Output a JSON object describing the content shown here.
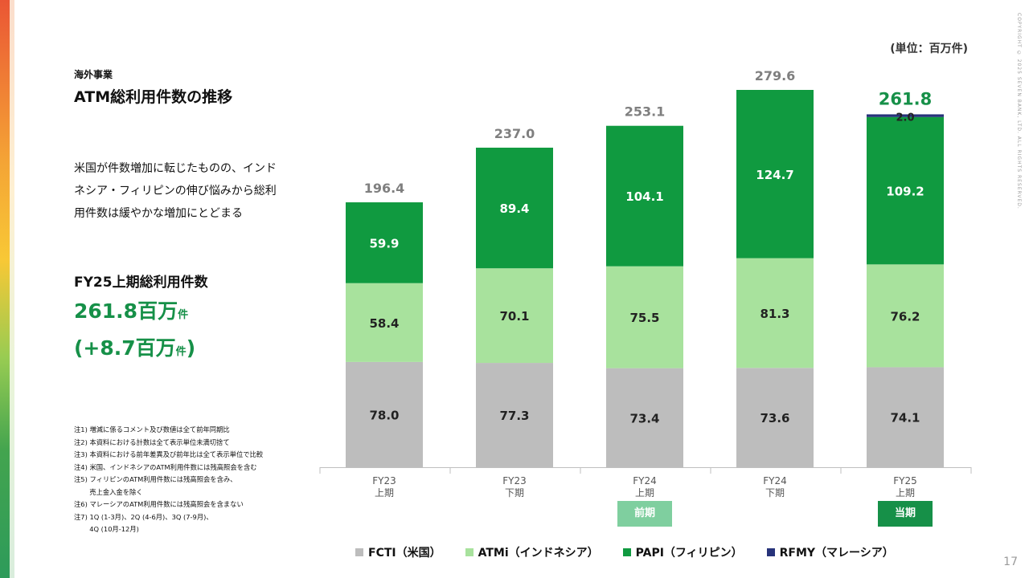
{
  "header": {
    "section": "海外事業",
    "title": "ATM総利用件数の推移",
    "unit_label": "(単位：百万件)",
    "copyright": "COPYRIGHT © 2025 SEVEN BANK, LTD. ALL RIGHTS RESERVED.",
    "page_number": "17"
  },
  "summary": {
    "description": "米国が件数増加に転じたものの、インドネシア・フィリピンの伸び悩みから総利用件数は緩やかな増加にとどまる",
    "kpi_label": "FY25上期総利用件数",
    "kpi_value": "261.8百万",
    "kpi_value_unit": "件",
    "kpi_change_prefix": "(+8.7百万",
    "kpi_change_unit": "件",
    "kpi_change_suffix": ")"
  },
  "notes": [
    "注1) 増減に係るコメント及び数値は全て前年同期比",
    "注2) 本資料における計数は全て表示単位未満切捨て",
    "注3) 本資料における前年差異及び前年比は全て表示単位で比較",
    "注4) 米国、インドネシアのATM利用件数には残高照会を含む",
    "注5) フィリピンのATM利用件数には残高照会を含み、",
    "　　 売上金入金を除く",
    "注6) マレーシアのATM利用件数には残高照会を含まない",
    "注7) 1Q (1-3月)、2Q (4-6月)、3Q (7-9月)、",
    "　　 4Q (10月-12月)"
  ],
  "badges": {
    "previous": "前期",
    "current": "当期"
  },
  "colors": {
    "fcti": "#bdbdbd",
    "atmi": "#a8e29d",
    "papi": "#109a40",
    "rfmy": "#27337a",
    "total_current": "#169048",
    "total_other": "#7f7f7f",
    "badge_previous": "#7fcf9f",
    "badge_current": "#169048"
  },
  "chart_data": {
    "type": "bar",
    "stacked": true,
    "categories": [
      [
        "FY23",
        "上期"
      ],
      [
        "FY23",
        "下期"
      ],
      [
        "FY24",
        "上期"
      ],
      [
        "FY24",
        "下期"
      ],
      [
        "FY25",
        "上期"
      ]
    ],
    "series": [
      {
        "name": "FCTI（米国）",
        "color_key": "fcti",
        "values": [
          78.0,
          77.3,
          73.4,
          73.6,
          74.1
        ],
        "labels": [
          "78.0",
          "77.3",
          "73.4",
          "73.6",
          "74.1"
        ]
      },
      {
        "name": "ATMi（インドネシア）",
        "color_key": "atmi",
        "values": [
          58.4,
          70.1,
          75.5,
          81.3,
          76.2
        ],
        "labels": [
          "58.4",
          "70.1",
          "75.5",
          "81.3",
          "76.2"
        ]
      },
      {
        "name": "PAPI（フィリピン）",
        "color_key": "papi",
        "values": [
          59.9,
          89.4,
          104.1,
          124.7,
          109.2
        ],
        "labels": [
          "59.9",
          "89.4",
          "104.1",
          "124.7",
          "109.2"
        ]
      },
      {
        "name": "RFMY（マレーシア）",
        "color_key": "rfmy",
        "values": [
          0,
          0,
          0,
          0,
          2.0
        ],
        "labels": [
          "",
          "",
          "",
          "",
          "2.0"
        ]
      }
    ],
    "totals": [
      "196.4",
      "237.0",
      "253.1",
      "279.6",
      "261.8"
    ],
    "highlight_index": 4,
    "ylim": [
      0,
      279.6
    ],
    "grid": false,
    "legend_position": "bottom"
  }
}
